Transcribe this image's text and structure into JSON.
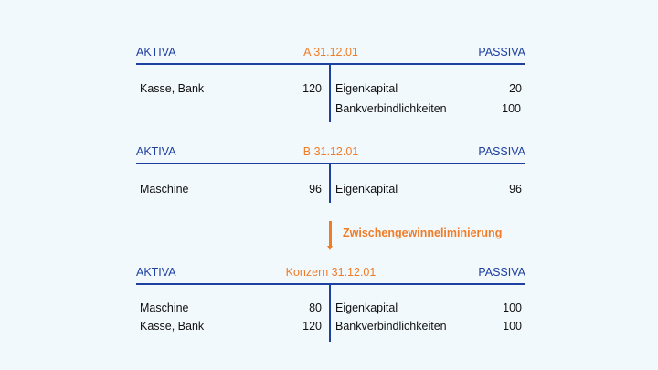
{
  "accounts": [
    {
      "left_header": "AKTIVA",
      "title": "A 31.12.01",
      "right_header": "PASSIVA",
      "aktiva": [
        {
          "label": "Kasse, Bank",
          "value": "120"
        }
      ],
      "passiva": [
        {
          "label": "Eigenkapital",
          "value": "20"
        },
        {
          "label": "Bankverbindlichkeiten",
          "value": "100"
        }
      ]
    },
    {
      "left_header": "AKTIVA",
      "title": "B 31.12.01",
      "right_header": "PASSIVA",
      "aktiva": [
        {
          "label": "Maschine",
          "value": "96"
        }
      ],
      "passiva": [
        {
          "label": "Eigenkapital",
          "value": "96"
        }
      ]
    },
    {
      "left_header": "AKTIVA",
      "title": "Konzern 31.12.01",
      "right_header": "PASSIVA",
      "aktiva": [
        {
          "label": "Maschine",
          "value": "80"
        },
        {
          "label": "Kasse, Bank",
          "value": "120"
        }
      ],
      "passiva": [
        {
          "label": "Eigenkapital",
          "value": "100"
        },
        {
          "label": "Bankverbindlichkeiten",
          "value": "100"
        }
      ]
    }
  ],
  "transition": {
    "label": "Zwischengewinneliminierung",
    "icon": "arrow-down-icon"
  },
  "colors": {
    "blue": "#1e40a0",
    "orange": "#f07c28",
    "background": "#f2f9fd"
  }
}
